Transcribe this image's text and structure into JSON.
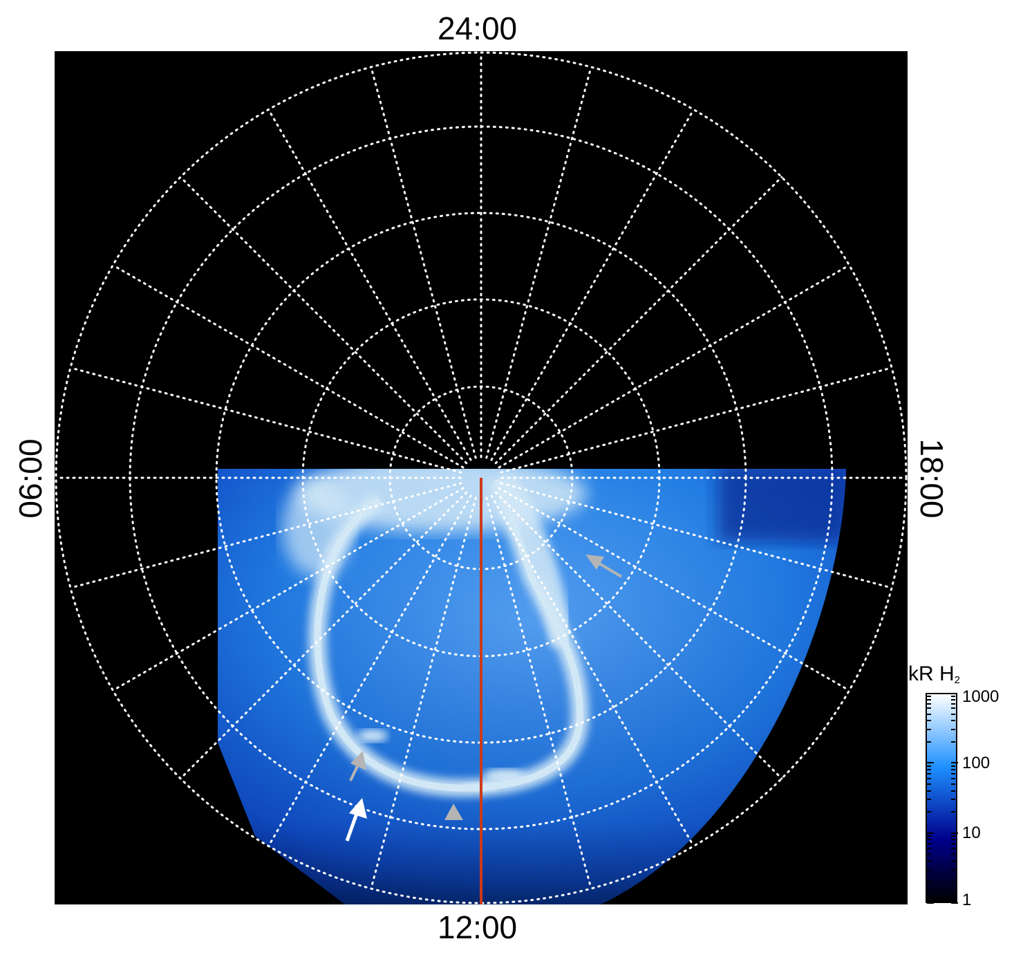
{
  "title_labels": {
    "top": "24:00",
    "bottom": "12:00",
    "left": "06:00",
    "right": "18:00"
  },
  "figure": {
    "description_colors": {
      "background": "#000000",
      "grid": "#ffffff",
      "meridian_line": "#cc3a1a",
      "arrow_gray": "#b4b4b4",
      "arrow_white": "#ffffff"
    },
    "annotations": [
      {
        "type": "arrow",
        "color": "gray"
      },
      {
        "type": "arrow",
        "color": "gray"
      },
      {
        "type": "arrow",
        "color": "white"
      },
      {
        "type": "triangle",
        "color": "gray"
      }
    ]
  },
  "colorbar": {
    "unit": "kR H",
    "unit_subscript": "2",
    "ticks": [
      "1000",
      "100",
      "10",
      "1"
    ],
    "colors": [
      "#ffffff",
      "#1e90ff",
      "#00008b",
      "#000000"
    ]
  }
}
